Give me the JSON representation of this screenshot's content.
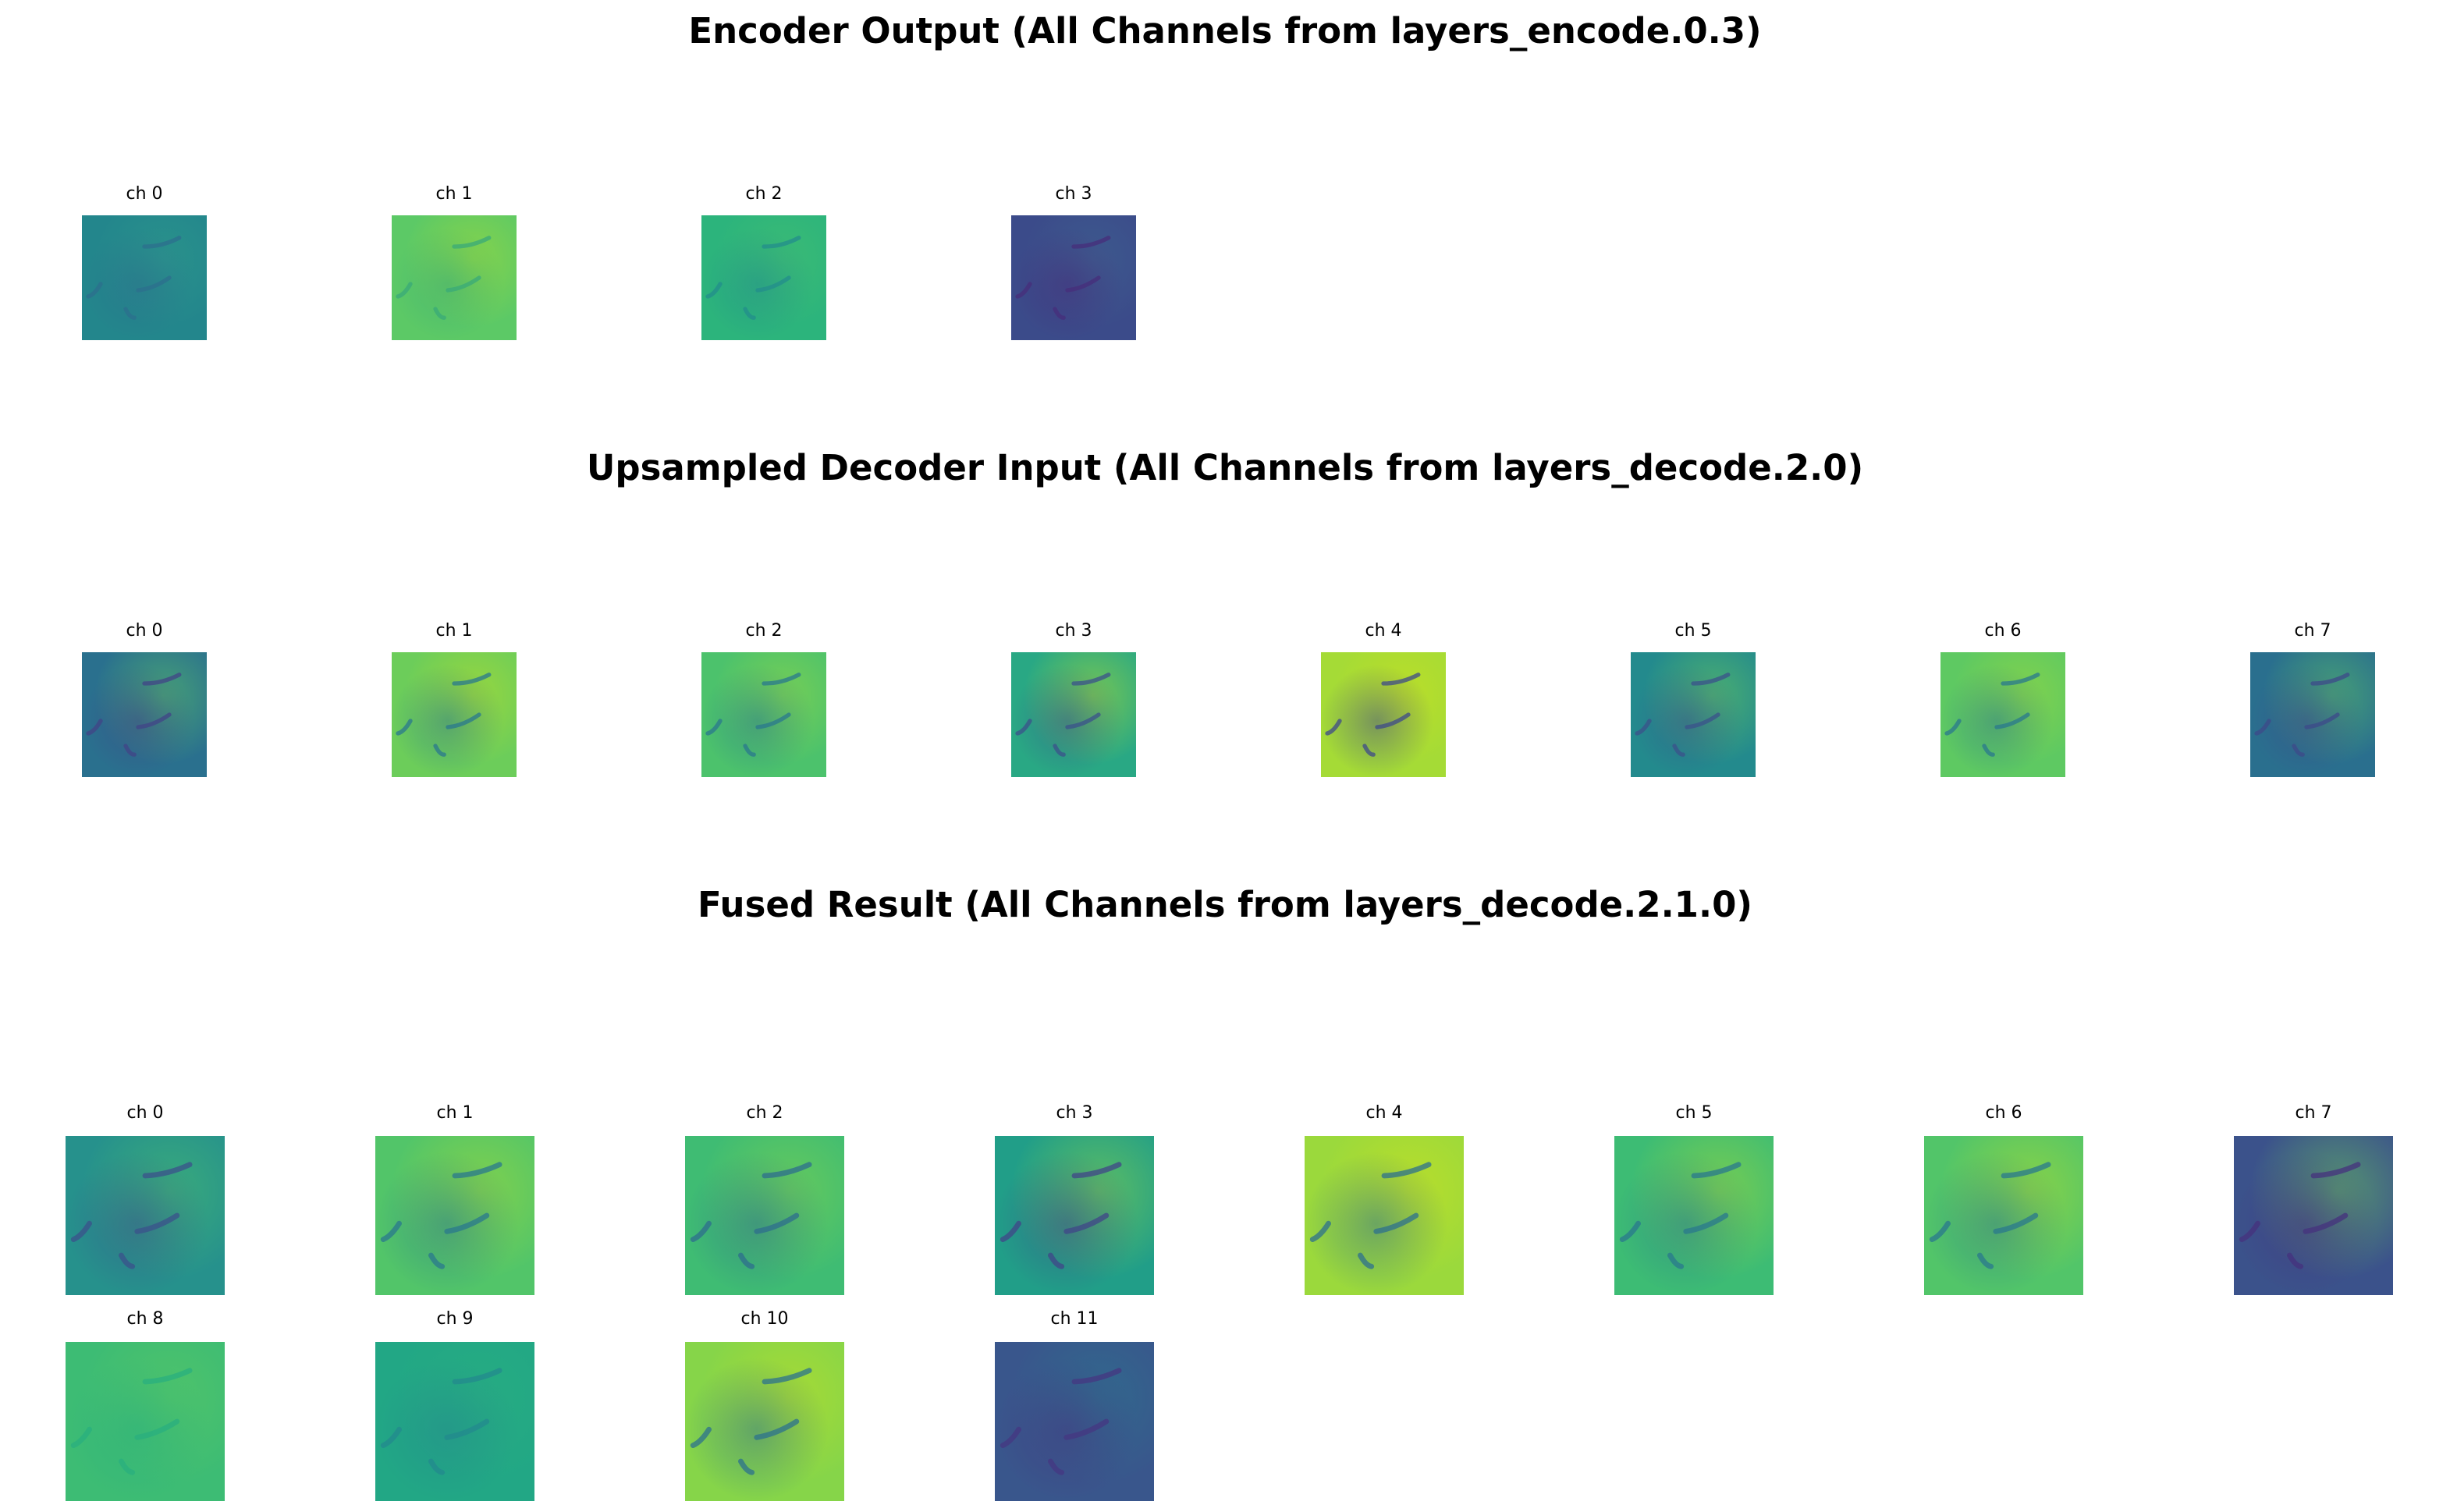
{
  "sections": [
    {
      "title": "Encoder Output (All Channels from layers_encode.0.3)",
      "channels": [
        {
          "label": "ch 0",
          "base": "#23868c",
          "dark": "#2c6f8e",
          "light": "#2f9c8a"
        },
        {
          "label": "ch 1",
          "base": "#5cc966",
          "dark": "#3aaa78",
          "light": "#a8db34"
        },
        {
          "label": "ch 2",
          "base": "#2cb47c",
          "dark": "#238d8c",
          "light": "#47c06f"
        },
        {
          "label": "ch 3",
          "base": "#3b4b8a",
          "dark": "#472d7b",
          "light": "#3f6690"
        }
      ]
    },
    {
      "title": "Upsampled Decoder Input (All Channels from layers_decode.2.0)",
      "channels": [
        {
          "label": "ch 0",
          "base": "#2a708e",
          "dark": "#414487",
          "light": "#5ec962"
        },
        {
          "label": "ch 1",
          "base": "#6ccd5a",
          "dark": "#2a788e",
          "light": "#bddf26"
        },
        {
          "label": "ch 2",
          "base": "#4cc26c",
          "dark": "#2a788e",
          "light": "#9ad941"
        },
        {
          "label": "ch 3",
          "base": "#29a884",
          "dark": "#3b528b",
          "light": "#b5de2b"
        },
        {
          "label": "ch 4",
          "base": "#a5db36",
          "dark": "#3e4a89",
          "light": "#cde11d"
        },
        {
          "label": "ch 5",
          "base": "#238a8d",
          "dark": "#3b528b",
          "light": "#6ece58"
        },
        {
          "label": "ch 6",
          "base": "#5ec962",
          "dark": "#2a788e",
          "light": "#a0da39"
        },
        {
          "label": "ch 7",
          "base": "#2a6f8e",
          "dark": "#3e4989",
          "light": "#5ec962"
        }
      ]
    },
    {
      "title": "Fused Result (All Channels from layers_decode.2.1.0)",
      "channels": [
        {
          "label": "ch 0",
          "base": "#26918c",
          "dark": "#3b528b",
          "light": "#4ac16d"
        },
        {
          "label": "ch 1",
          "base": "#52c569",
          "dark": "#2a788e",
          "light": "#a8db34"
        },
        {
          "label": "ch 2",
          "base": "#3fbc73",
          "dark": "#2e6e8e",
          "light": "#86d549"
        },
        {
          "label": "ch 3",
          "base": "#219e88",
          "dark": "#404688",
          "light": "#8fd744"
        },
        {
          "label": "ch 4",
          "base": "#9bd93c",
          "dark": "#2d708e",
          "light": "#d2e21b"
        },
        {
          "label": "ch 5",
          "base": "#3dbc74",
          "dark": "#2a788e",
          "light": "#a8db34"
        },
        {
          "label": "ch 6",
          "base": "#52c569",
          "dark": "#2a788e",
          "light": "#b8de29"
        },
        {
          "label": "ch 7",
          "base": "#3b528b",
          "dark": "#46327e",
          "light": "#6ccd5a"
        },
        {
          "label": "ch 8",
          "base": "#3dbc74",
          "dark": "#29af7f",
          "light": "#5ec962"
        },
        {
          "label": "ch 9",
          "base": "#22a785",
          "dark": "#23898e",
          "light": "#2ab07f"
        },
        {
          "label": "ch 10",
          "base": "#86d549",
          "dark": "#2c728e",
          "light": "#c2df23"
        },
        {
          "label": "ch 11",
          "base": "#39568c",
          "dark": "#453781",
          "light": "#2a788e"
        }
      ]
    }
  ]
}
